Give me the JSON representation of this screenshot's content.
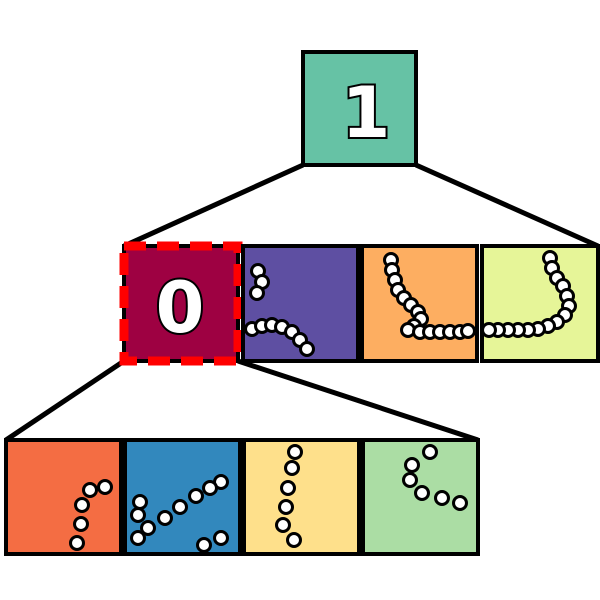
{
  "tree": {
    "root": {
      "label": "1",
      "color": "#66c2a5",
      "trail": ""
    },
    "level1": [
      {
        "label": "0",
        "color": "#9e0142",
        "selected": true,
        "trail": ""
      },
      {
        "label": "",
        "color": "#5e4fa2",
        "trail": "bead-trail-corner"
      },
      {
        "label": "",
        "color": "#fdae61",
        "trail": "bead-trail-hook"
      },
      {
        "label": "",
        "color": "#e6f598",
        "trail": "bead-trail-curve"
      }
    ],
    "level2": [
      {
        "label": "",
        "color": "#f46d43",
        "trail": "bead-trail-rise"
      },
      {
        "label": "",
        "color": "#3288bd",
        "trail": "bead-trail-diagonal"
      },
      {
        "label": "",
        "color": "#fee08b",
        "trail": "bead-trail-vertical"
      },
      {
        "label": "",
        "color": "#abdda4",
        "trail": "bead-trail-zigzag"
      }
    ]
  },
  "colors": {
    "edge": "#000000",
    "selection": "#ff0000",
    "bead_fill": "#ffffff",
    "bead_stroke": "#000000"
  }
}
